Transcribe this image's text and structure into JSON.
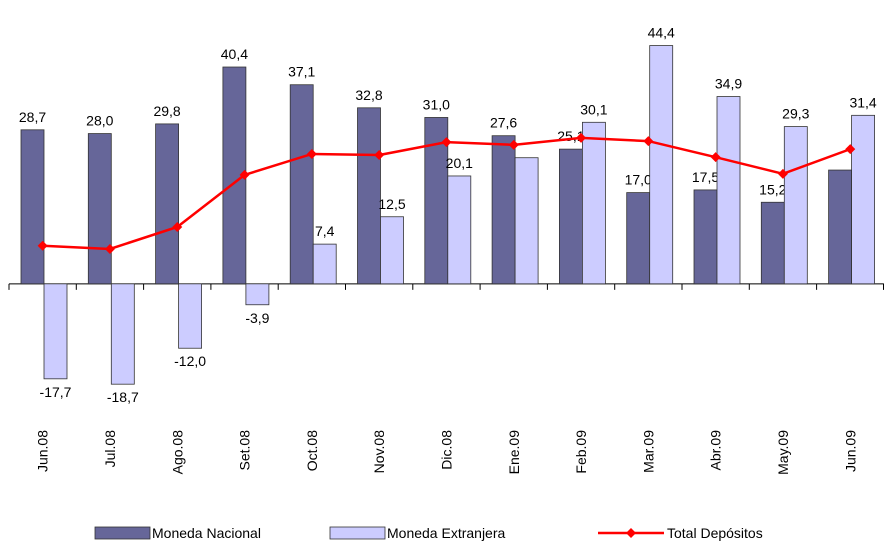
{
  "chart_data": {
    "type": "bar-line",
    "categories": [
      "Jun.08",
      "Jul.08",
      "Ago.08",
      "Set.08",
      "Oct.08",
      "Nov.08",
      "Dic.08",
      "Ene.09",
      "Feb.09",
      "Mar.09",
      "Abr.09",
      "May.09",
      "Jun.09"
    ],
    "series": [
      {
        "name": "Moneda Nacional",
        "type": "bar",
        "color": "#666699",
        "values": [
          28.7,
          28.0,
          29.8,
          40.4,
          37.1,
          32.8,
          31.0,
          27.6,
          25.1,
          17.0,
          17.5,
          15.2,
          21.2
        ],
        "value_labels": [
          "28,7",
          "28,0",
          "29,8",
          "40,4",
          "37,1",
          "32,8",
          "31,0",
          "27,6",
          "25,1",
          "17,0",
          "17,5",
          "15,2",
          null
        ]
      },
      {
        "name": "Moneda Extranjera",
        "type": "bar",
        "color": "#ccccff",
        "values": [
          -17.7,
          -18.7,
          -12.0,
          -3.9,
          7.4,
          12.5,
          20.1,
          23.5,
          30.1,
          44.4,
          34.9,
          29.3,
          31.4
        ],
        "value_labels": [
          "-17,7",
          "-18,7",
          "-12,0",
          "-3,9",
          "7,4",
          "12,5",
          "20,1",
          null,
          "30,1",
          "44,4",
          "34,9",
          "29,3",
          "31,4"
        ]
      },
      {
        "name": "Total Depósitos",
        "type": "line",
        "color": "#ff0000",
        "values": [
          7.1,
          6.5,
          10.6,
          20.3,
          24.2,
          24.0,
          26.4,
          25.9,
          27.2,
          26.6,
          23.6,
          20.5,
          25.1
        ]
      }
    ],
    "ylim": [
      -25,
      50
    ],
    "legend": "bottom"
  }
}
